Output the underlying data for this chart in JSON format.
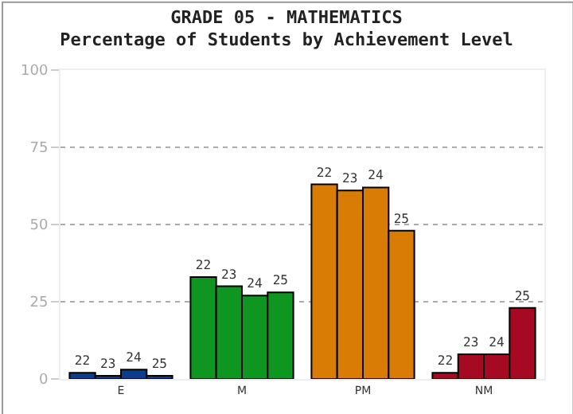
{
  "chart_data": {
    "type": "bar",
    "title": "GRADE 05 - MATHEMATICS",
    "subtitle": "Percentage of Students by Achievement Level",
    "categories": [
      "E",
      "M",
      "PM",
      "NM"
    ],
    "series": [
      {
        "name": "22",
        "colors": [
          "#0b3d8c",
          "#0f9620",
          "#d87c06",
          "#a50a22"
        ],
        "values": [
          2,
          33,
          63,
          2
        ]
      },
      {
        "name": "23",
        "colors": [
          "#0b3d8c",
          "#0f9620",
          "#d87c06",
          "#a50a22"
        ],
        "values": [
          1,
          30,
          61,
          8
        ]
      },
      {
        "name": "24",
        "colors": [
          "#0b3d8c",
          "#0f9620",
          "#d87c06",
          "#a50a22"
        ],
        "values": [
          3,
          27,
          62,
          8
        ]
      },
      {
        "name": "25",
        "colors": [
          "#0b3d8c",
          "#0f9620",
          "#d87c06",
          "#a50a22"
        ],
        "values": [
          1,
          28,
          48,
          23
        ]
      }
    ],
    "ylim": [
      0,
      100
    ],
    "yticks": [
      0,
      25,
      50,
      75,
      100
    ],
    "grid": "y",
    "legend": false
  }
}
